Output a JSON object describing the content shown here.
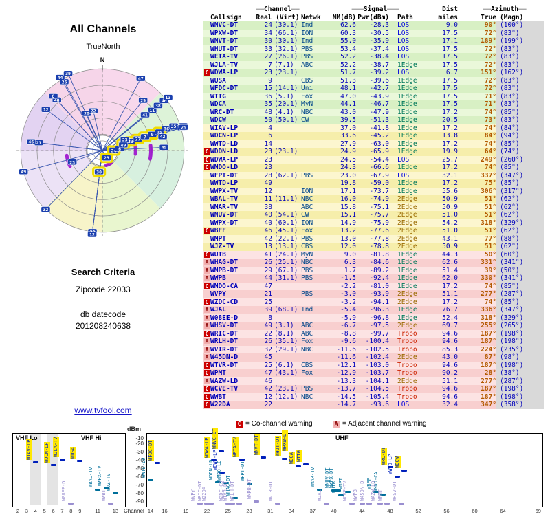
{
  "radar": {
    "title": "All Channels",
    "true_north_label": "TrueNorth",
    "north_label": "N",
    "sectors": [
      "#f8d8ec",
      "#ddf3d8",
      "#d7f0df",
      "#e9f6cf",
      "#f7f4c9",
      "#ece2f6",
      "#e3d3f2",
      "#f6d5e9"
    ],
    "arcs": [
      {
        "a0": 64,
        "a1": 96,
        "r": 48
      },
      {
        "a0": 84,
        "a1": 100,
        "r": 70
      },
      {
        "a0": 244,
        "a1": 262,
        "r": 52
      },
      {
        "a0": 146,
        "a1": 166,
        "r": 22
      }
    ]
  },
  "search_criteria": {
    "heading": "Search Criteria",
    "zipcode": "Zipcode 22033",
    "db_datecode_label": "db datecode",
    "db_datecode": "201208240638"
  },
  "site_link": "www.tvfool.com",
  "table_header": {
    "channel": "Channel",
    "signal": "Signal",
    "dist": "Dist",
    "azimuth": "Azimuth",
    "callsign": "Callsign",
    "real_virt": "Real (Virt)",
    "netwk": "Netwk",
    "nm": "NM(dB)",
    "pwr": "Pwr(dBm)",
    "path": "Path",
    "miles": "miles",
    "true": "True",
    "magn": "(Magn)",
    "decor2": "══",
    "decor3": "═══"
  },
  "legend": {
    "c_symbol": "C",
    "c_label": "= Co-channel warning",
    "a_symbol": "A",
    "a_label": "= Adjacent channel warning"
  },
  "chart_labels": {
    "dbm": "dBm",
    "channel": "Channel",
    "vhf_lo": "VHF Lo",
    "vhf_hi": "VHF Hi",
    "uhf": "UHF"
  },
  "chart_axes": {
    "y_ticks": [
      -10,
      -20,
      -30,
      -40,
      -50,
      -60,
      -70,
      -80,
      -90
    ],
    "vhf_ticks": [
      2,
      3,
      4,
      5,
      6,
      7,
      8,
      9,
      11,
      13
    ],
    "uhf_ticks": [
      14,
      16,
      19,
      22,
      25,
      28,
      31,
      34,
      37,
      40,
      44,
      48,
      52,
      56,
      60,
      64,
      69
    ]
  },
  "stations": [
    {
      "m": "",
      "cs": "WNVC-DT",
      "real": "24",
      "virt": "(30.1)",
      "net": "Ind",
      "nm": "62.6",
      "pwr": "-28.3",
      "path": "LOS",
      "mi": "9.0",
      "azt": "90°",
      "azm": "(100°)"
    },
    {
      "m": "",
      "cs": "WPXW-DT",
      "real": "34",
      "virt": "(66.1)",
      "net": "ION",
      "nm": "60.3",
      "pwr": "-30.5",
      "path": "LOS",
      "mi": "17.5",
      "azt": "72°",
      "azm": "(83°)"
    },
    {
      "m": "",
      "cs": "WNVT-DT",
      "real": "30",
      "virt": "(30.1)",
      "net": "Ind",
      "nm": "55.0",
      "pwr": "-35.9",
      "path": "LOS",
      "mi": "17.1",
      "azt": "189°",
      "azm": "(199°)"
    },
    {
      "m": "",
      "cs": "WHUT-DT",
      "real": "33",
      "virt": "(32.1)",
      "net": "PBS",
      "nm": "53.4",
      "pwr": "-37.4",
      "path": "LOS",
      "mi": "17.5",
      "azt": "72°",
      "azm": "(83°)"
    },
    {
      "m": "",
      "cs": "WETA-TV",
      "real": "27",
      "virt": "(26.1)",
      "net": "PBS",
      "nm": "52.2",
      "pwr": "-38.4",
      "path": "LOS",
      "mi": "17.5",
      "azt": "72°",
      "azm": "(83°)"
    },
    {
      "m": "",
      "cs": "WJLA-TV",
      "real": "7",
      "virt": "(7.1)",
      "net": "ABC",
      "nm": "52.2",
      "pwr": "-38.7",
      "path": "1Edge",
      "mi": "17.5",
      "azt": "72°",
      "azm": "(83°)"
    },
    {
      "m": "C",
      "cs": "WDWA-LP",
      "real": "23",
      "virt": "(23.1)",
      "net": "",
      "nm": "51.7",
      "pwr": "-39.2",
      "path": "LOS",
      "mi": "6.7",
      "azt": "151°",
      "azm": "(162°)"
    },
    {
      "m": "",
      "cs": "WUSA",
      "real": "9",
      "virt": "",
      "net": "CBS",
      "nm": "51.3",
      "pwr": "-39.6",
      "path": "1Edge",
      "mi": "17.5",
      "azt": "72°",
      "azm": "(83°)"
    },
    {
      "m": "",
      "cs": "WFDC-DT",
      "real": "15",
      "virt": "(14.1)",
      "net": "Uni",
      "nm": "48.1",
      "pwr": "-42.7",
      "path": "1Edge",
      "mi": "17.5",
      "azt": "72°",
      "azm": "(83°)"
    },
    {
      "m": "",
      "cs": "WTTG",
      "real": "36",
      "virt": "(5.1)",
      "net": "Fox",
      "nm": "47.0",
      "pwr": "-43.9",
      "path": "1Edge",
      "mi": "17.5",
      "azt": "71°",
      "azm": "(83°)"
    },
    {
      "m": "",
      "cs": "WDCA",
      "real": "35",
      "virt": "(20.1)",
      "net": "MyN",
      "nm": "44.1",
      "pwr": "-46.7",
      "path": "1Edge",
      "mi": "17.5",
      "azt": "71°",
      "azm": "(83°)"
    },
    {
      "m": "",
      "cs": "WRC-DT",
      "real": "48",
      "virt": "(4.1)",
      "net": "NBC",
      "nm": "43.0",
      "pwr": "-47.9",
      "path": "1Edge",
      "mi": "17.2",
      "azt": "74°",
      "azm": "(85°)"
    },
    {
      "m": "",
      "cs": "WDCW",
      "real": "50",
      "virt": "(50.1)",
      "net": "CW",
      "nm": "39.5",
      "pwr": "-51.3",
      "path": "1Edge",
      "mi": "20.5",
      "azt": "73°",
      "azm": "(83°)"
    },
    {
      "m": "",
      "cs": "WIAV-LP",
      "real": "4",
      "virt": "",
      "net": "",
      "nm": "37.0",
      "pwr": "-41.8",
      "path": "1Edge",
      "mi": "17.2",
      "azt": "74°",
      "azm": "(84°)"
    },
    {
      "m": "",
      "cs": "WDCN-LP",
      "real": "6",
      "virt": "",
      "net": "",
      "nm": "33.6",
      "pwr": "-45.2",
      "path": "1Edge",
      "mi": "13.8",
      "azt": "84°",
      "azm": "(94°)"
    },
    {
      "m": "",
      "cs": "WWTD-LD",
      "real": "14",
      "virt": "",
      "net": "",
      "nm": "27.9",
      "pwr": "-63.0",
      "path": "1Edge",
      "mi": "17.2",
      "azt": "74°",
      "azm": "(85°)"
    },
    {
      "m": "C",
      "cs": "WDDN-LD",
      "real": "23",
      "virt": "(23.1)",
      "net": "",
      "nm": "24.9",
      "pwr": "-65.9",
      "path": "1Edge",
      "mi": "19.9",
      "azt": "64°",
      "azm": "(74°)"
    },
    {
      "m": "C",
      "cs": "WDWA-LP",
      "real": "23",
      "virt": "",
      "net": "",
      "nm": "24.5",
      "pwr": "-54.4",
      "path": "LOS",
      "mi": "25.7",
      "azt": "249°",
      "azm": "(260°)"
    },
    {
      "m": "C",
      "cs": "WMDO-LD",
      "real": "23",
      "virt": "",
      "net": "",
      "nm": "24.3",
      "pwr": "-66.6",
      "path": "1Edge",
      "mi": "17.2",
      "azt": "74°",
      "azm": "(85°)"
    },
    {
      "m": "",
      "cs": "WFPT-DT",
      "real": "28",
      "virt": "(62.1)",
      "net": "PBS",
      "nm": "23.0",
      "pwr": "-67.9",
      "path": "LOS",
      "mi": "32.1",
      "azt": "337°",
      "azm": "(347°)"
    },
    {
      "m": "",
      "cs": "WWTD-LP",
      "real": "49",
      "virt": "",
      "net": "",
      "nm": "19.8",
      "pwr": "-59.0",
      "path": "1Edge",
      "mi": "17.2",
      "azt": "75°",
      "azm": "(85°)"
    },
    {
      "m": "",
      "cs": "WWPX-TV",
      "real": "12",
      "virt": "",
      "net": "ION",
      "nm": "17.1",
      "pwr": "-73.7",
      "path": "1Edge",
      "mi": "55.6",
      "azt": "306°",
      "azm": "(317°)"
    },
    {
      "m": "",
      "cs": "WBAL-TV",
      "real": "11",
      "virt": "(11.1)",
      "net": "NBC",
      "nm": "16.0",
      "pwr": "-74.9",
      "path": "2Edge",
      "mi": "50.9",
      "azt": "51°",
      "azm": "(62°)"
    },
    {
      "m": "",
      "cs": "WMAR-TV",
      "real": "38",
      "virt": "",
      "net": "ABC",
      "nm": "15.8",
      "pwr": "-75.1",
      "path": "2Edge",
      "mi": "50.9",
      "azt": "51°",
      "azm": "(62°)"
    },
    {
      "m": "",
      "cs": "WNUV-DT",
      "real": "40",
      "virt": "(54.1)",
      "net": "CW",
      "nm": "15.1",
      "pwr": "-75.7",
      "path": "2Edge",
      "mi": "51.0",
      "azt": "51°",
      "azm": "(62°)"
    },
    {
      "m": "",
      "cs": "WWPX-DT",
      "real": "40",
      "virt": "(60.1)",
      "net": "ION",
      "nm": "14.9",
      "pwr": "-75.9",
      "path": "2Edge",
      "mi": "54.2",
      "azt": "318°",
      "azm": "(329°)"
    },
    {
      "m": "C",
      "cs": "WBFF",
      "real": "46",
      "virt": "(45.1)",
      "net": "Fox",
      "nm": "13.2",
      "pwr": "-77.6",
      "path": "2Edge",
      "mi": "51.0",
      "azt": "51°",
      "azm": "(62°)"
    },
    {
      "m": "",
      "cs": "WMPT",
      "real": "42",
      "virt": "(22.1)",
      "net": "PBS",
      "nm": "13.0",
      "pwr": "-77.8",
      "path": "2Edge",
      "mi": "43.1",
      "azt": "77°",
      "azm": "(88°)"
    },
    {
      "m": "",
      "cs": "WJZ-TV",
      "real": "13",
      "virt": "(13.1)",
      "net": "CBS",
      "nm": "12.0",
      "pwr": "-78.8",
      "path": "2Edge",
      "mi": "50.9",
      "azt": "51°",
      "azm": "(62°)"
    },
    {
      "m": "C",
      "cs": "WUTB",
      "real": "41",
      "virt": "(24.1)",
      "net": "MyN",
      "nm": "9.0",
      "pwr": "-81.8",
      "path": "1Edge",
      "mi": "44.3",
      "azt": "50°",
      "azm": "(60°)"
    },
    {
      "m": "A",
      "cs": "WHAG-DT",
      "real": "26",
      "virt": "(25.1)",
      "net": "NBC",
      "nm": "6.3",
      "pwr": "-84.6",
      "path": "1Edge",
      "mi": "62.6",
      "azt": "331°",
      "azm": "(341°)"
    },
    {
      "m": "A",
      "cs": "WMPB-DT",
      "real": "29",
      "virt": "(67.1)",
      "net": "PBS",
      "nm": "1.7",
      "pwr": "-89.2",
      "path": "1Edge",
      "mi": "51.4",
      "azt": "39°",
      "azm": "(50°)"
    },
    {
      "m": "A",
      "cs": "WWPB",
      "real": "44",
      "virt": "(31.1)",
      "net": "PBS",
      "nm": "-1.5",
      "pwr": "-92.4",
      "path": "1Edge",
      "mi": "62.0",
      "azt": "330°",
      "azm": "(341°)"
    },
    {
      "m": "C",
      "cs": "WMDO-CA",
      "real": "47",
      "virt": "",
      "net": "",
      "nm": "-2.2",
      "pwr": "-81.0",
      "path": "1Edge",
      "mi": "17.2",
      "azt": "74°",
      "azm": "(85°)"
    },
    {
      "m": "",
      "cs": "WVPY",
      "real": "21",
      "virt": "",
      "net": "PBS",
      "nm": "-3.0",
      "pwr": "-93.9",
      "path": "2Edge",
      "mi": "51.1",
      "azt": "277°",
      "azm": "(287°)"
    },
    {
      "m": "C",
      "cs": "WZDC-CD",
      "real": "25",
      "virt": "",
      "net": "",
      "nm": "-3.2",
      "pwr": "-94.1",
      "path": "2Edge",
      "mi": "17.2",
      "azt": "74°",
      "azm": "(85°)"
    },
    {
      "m": "A",
      "cs": "WJAL",
      "real": "39",
      "virt": "(68.1)",
      "net": "Ind",
      "nm": "-5.4",
      "pwr": "-96.3",
      "path": "1Edge",
      "mi": "76.7",
      "azt": "336°",
      "azm": "(347°)"
    },
    {
      "m": "A",
      "cs": "W08EE-D",
      "real": "8",
      "virt": "",
      "net": "",
      "nm": "-5.9",
      "pwr": "-96.8",
      "path": "1Edge",
      "mi": "52.4",
      "azt": "318°",
      "azm": "(329°)"
    },
    {
      "m": "A",
      "cs": "WHSV-DT",
      "real": "49",
      "virt": "(3.1)",
      "net": "ABC",
      "nm": "-6.7",
      "pwr": "-97.5",
      "path": "2Edge",
      "mi": "69.7",
      "azt": "255°",
      "azm": "(265°)"
    },
    {
      "m": "C",
      "cs": "WRIC-DT",
      "real": "22",
      "virt": "(8.1)",
      "net": "ABC",
      "nm": "-8.8",
      "pwr": "-99.7",
      "path": "Tropo",
      "mi": "94.6",
      "azt": "187°",
      "azm": "(198°)"
    },
    {
      "m": "A",
      "cs": "WRLH-DT",
      "real": "26",
      "virt": "(35.1)",
      "net": "Fox",
      "nm": "-9.6",
      "pwr": "-100.4",
      "path": "Tropo",
      "mi": "94.6",
      "azt": "187°",
      "azm": "(198°)"
    },
    {
      "m": "A",
      "cs": "WVIR-DT",
      "real": "32",
      "virt": "(29.1)",
      "net": "NBC",
      "nm": "-11.6",
      "pwr": "-102.5",
      "path": "Tropo",
      "mi": "85.3",
      "azt": "224°",
      "azm": "(235°)"
    },
    {
      "m": "A",
      "cs": "W45DN-D",
      "real": "45",
      "virt": "",
      "net": "",
      "nm": "-11.6",
      "pwr": "-102.4",
      "path": "2Edge",
      "mi": "43.0",
      "azt": "87°",
      "azm": "(98°)"
    },
    {
      "m": "C",
      "cs": "WTVR-DT",
      "real": "25",
      "virt": "(6.1)",
      "net": "CBS",
      "nm": "-12.1",
      "pwr": "-103.0",
      "path": "Tropo",
      "mi": "94.6",
      "azt": "187°",
      "azm": "(198°)"
    },
    {
      "m": "C",
      "cs": "WPMT",
      "real": "47",
      "virt": "(43.1)",
      "net": "Fox",
      "nm": "-12.9",
      "pwr": "-103.7",
      "path": "Tropo",
      "mi": "90.2",
      "azt": "28°",
      "azm": "(38°)"
    },
    {
      "m": "A",
      "cs": "WAZW-LD",
      "real": "46",
      "virt": "",
      "net": "",
      "nm": "-13.3",
      "pwr": "-104.1",
      "path": "2Edge",
      "mi": "51.1",
      "azt": "277°",
      "azm": "(287°)"
    },
    {
      "m": "C",
      "cs": "WCVE-TV",
      "real": "42",
      "virt": "(23.1)",
      "net": "PBS",
      "nm": "-13.7",
      "pwr": "-104.5",
      "path": "Tropo",
      "mi": "94.6",
      "azt": "187°",
      "azm": "(198°)"
    },
    {
      "m": "C",
      "cs": "WWBT",
      "real": "12",
      "virt": "(12.1)",
      "net": "NBC",
      "nm": "-14.5",
      "pwr": "-105.4",
      "path": "Tropo",
      "mi": "94.6",
      "azt": "187°",
      "azm": "(198°)"
    },
    {
      "m": "C",
      "cs": "W22DA",
      "real": "22",
      "virt": "",
      "net": "",
      "nm": "-14.7",
      "pwr": "-93.6",
      "path": "LOS",
      "mi": "32.4",
      "azt": "347°",
      "azm": "(358°)"
    }
  ],
  "chart_data": [
    {
      "type": "scatter",
      "title": "All Channels",
      "polar": true,
      "angle_field": "azt (true azimuth, degrees from north)",
      "radius_field": "mi (distance, miles)",
      "point_label_field": "real (RF channel number)",
      "source": "stations",
      "legend_position": "none",
      "grid": true
    },
    {
      "type": "scatter",
      "title": "Signal levels by channel",
      "xlabel": "Channel",
      "ylabel": "dBm",
      "x_field": "real (RF channel number)",
      "y_field": "pwr (dBm)",
      "ylim": [
        -90,
        -10
      ],
      "x_sections": [
        "VHF Lo (2-6)",
        "VHF Hi (7-13)",
        "UHF (14-69)"
      ],
      "source": "stations",
      "grid": false
    }
  ]
}
